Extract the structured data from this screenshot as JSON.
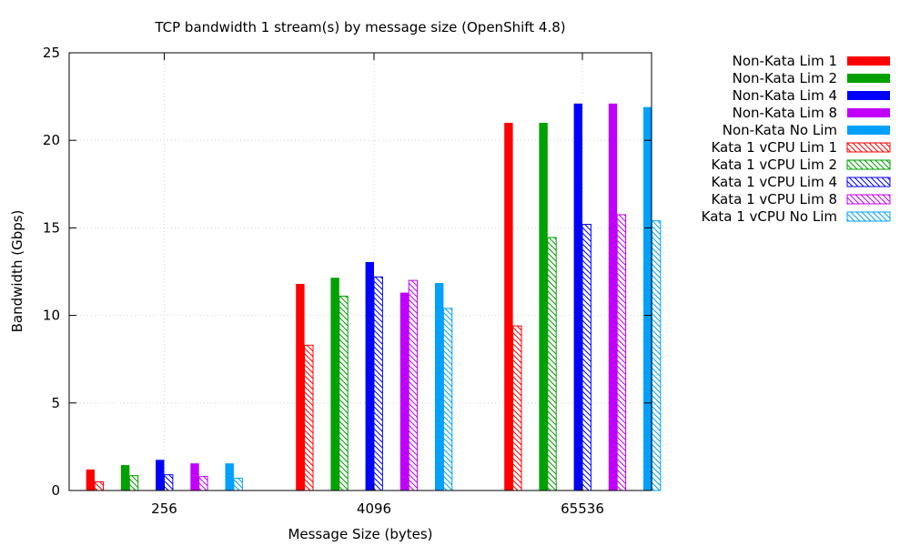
{
  "chart_data": {
    "type": "bar",
    "title": "TCP bandwidth  1 stream(s) by message size (OpenShift 4.8)",
    "xlabel": "Message Size (bytes)",
    "ylabel": "Bandwidth (Gbps)",
    "ylim": [
      0,
      25
    ],
    "yticks": [
      "0",
      "5",
      "10",
      "15",
      "20",
      "25"
    ],
    "grid": true,
    "legend_position": "top-right outside",
    "categories": [
      "256",
      "4096",
      "65536"
    ],
    "series": [
      {
        "name": "Non-Kata Lim 1",
        "color": "#ff0000",
        "pattern": "solid",
        "values": [
          1.2,
          11.8,
          21.0
        ]
      },
      {
        "name": "Kata 1 vCPU Lim 1",
        "color": "#ff0000",
        "pattern": "hatched",
        "values": [
          0.5,
          8.3,
          9.4
        ]
      },
      {
        "name": "Non-Kata Lim 2",
        "color": "#00a000",
        "pattern": "solid",
        "values": [
          1.45,
          12.15,
          21.0
        ]
      },
      {
        "name": "Kata 1 vCPU Lim 2",
        "color": "#00a000",
        "pattern": "hatched",
        "values": [
          0.85,
          11.1,
          14.45
        ]
      },
      {
        "name": "Non-Kata Lim 4",
        "color": "#0000ff",
        "pattern": "solid",
        "values": [
          1.75,
          13.05,
          22.1
        ]
      },
      {
        "name": "Kata 1 vCPU Lim 4",
        "color": "#0000ff",
        "pattern": "hatched",
        "values": [
          0.9,
          12.2,
          15.2
        ]
      },
      {
        "name": "Non-Kata Lim 8",
        "color": "#c000ff",
        "pattern": "solid",
        "values": [
          1.55,
          11.3,
          22.1
        ]
      },
      {
        "name": "Kata 1 vCPU Lim 8",
        "color": "#c000ff",
        "pattern": "hatched",
        "values": [
          0.8,
          12.0,
          15.75
        ]
      },
      {
        "name": "Non-Kata No Lim",
        "color": "#00a0ff",
        "pattern": "solid",
        "values": [
          1.55,
          11.85,
          21.9
        ]
      },
      {
        "name": "Kata 1 vCPU No Lim",
        "color": "#00a0ff",
        "pattern": "hatched",
        "values": [
          0.7,
          10.4,
          15.4
        ]
      }
    ],
    "legend_order": [
      "Non-Kata Lim 1",
      "Non-Kata Lim 2",
      "Non-Kata Lim 4",
      "Non-Kata Lim 8",
      "Non-Kata No Lim",
      "Kata 1 vCPU Lim 1",
      "Kata 1 vCPU Lim 2",
      "Kata 1 vCPU Lim 4",
      "Kata 1 vCPU Lim 8",
      "Kata 1 vCPU No Lim"
    ]
  }
}
